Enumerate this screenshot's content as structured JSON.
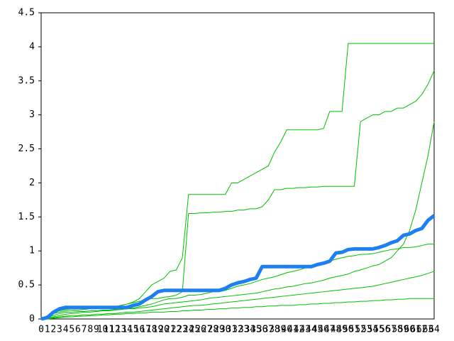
{
  "chart_data": {
    "type": "line",
    "categories": [
      0,
      1,
      2,
      3,
      4,
      5,
      6,
      7,
      8,
      9,
      10,
      11,
      12,
      13,
      14,
      15,
      16,
      17,
      18,
      19,
      20,
      21,
      22,
      23,
      24,
      25,
      26,
      27,
      28,
      29,
      30,
      31,
      32,
      33,
      34,
      35,
      36,
      37,
      38,
      39,
      40,
      41,
      42,
      43,
      44,
      45,
      46,
      47,
      48,
      49,
      50,
      51,
      52,
      53,
      54,
      55,
      56,
      57,
      58,
      59,
      60,
      61,
      62,
      63,
      64
    ],
    "ylim": [
      0,
      4.5
    ],
    "yticks": [
      0,
      0.5,
      1,
      1.5,
      2,
      2.5,
      3,
      3.5,
      4,
      4.5
    ],
    "series": [
      {
        "color": "#00c000",
        "values": [
          0,
          0.05,
          0.1,
          0.12,
          0.14,
          0.15,
          0.15,
          0.16,
          0.16,
          0.17,
          0.17,
          0.18,
          0.18,
          0.2,
          0.22,
          0.25,
          0.3,
          0.4,
          0.5,
          0.55,
          0.6,
          0.7,
          0.72,
          0.9,
          1.83,
          1.83,
          1.83,
          1.83,
          1.83,
          1.83,
          1.83,
          2.0,
          2.0,
          2.05,
          2.1,
          2.15,
          2.2,
          2.25,
          2.45,
          2.6,
          2.78,
          2.78,
          2.78,
          2.78,
          2.78,
          2.78,
          2.8,
          3.05,
          3.05,
          3.05,
          4.05,
          4.05,
          4.05,
          4.05,
          4.05,
          4.05,
          4.05,
          4.05,
          4.05,
          4.05,
          4.05,
          4.05,
          4.05,
          4.05,
          4.05
        ]
      },
      {
        "color": "#00c000",
        "values": [
          0,
          0.03,
          0.08,
          0.1,
          0.12,
          0.13,
          0.13,
          0.14,
          0.15,
          0.15,
          0.16,
          0.17,
          0.18,
          0.2,
          0.22,
          0.24,
          0.26,
          0.28,
          0.3,
          0.3,
          0.32,
          0.33,
          0.35,
          0.4,
          1.55,
          1.55,
          1.56,
          1.56,
          1.57,
          1.57,
          1.58,
          1.58,
          1.6,
          1.6,
          1.62,
          1.62,
          1.65,
          1.75,
          1.9,
          1.9,
          1.92,
          1.92,
          1.93,
          1.93,
          1.94,
          1.94,
          1.95,
          1.95,
          1.95,
          1.95,
          1.95,
          1.95,
          2.9,
          2.95,
          3.0,
          3.0,
          3.05,
          3.05,
          3.1,
          3.1,
          3.15,
          3.2,
          3.3,
          3.45,
          3.65
        ]
      },
      {
        "color": "#00c000",
        "values": [
          0,
          0.02,
          0.05,
          0.08,
          0.1,
          0.1,
          0.11,
          0.11,
          0.12,
          0.12,
          0.13,
          0.13,
          0.14,
          0.14,
          0.15,
          0.15,
          0.16,
          0.17,
          0.18,
          0.2,
          0.22,
          0.23,
          0.24,
          0.25,
          0.26,
          0.27,
          0.28,
          0.3,
          0.31,
          0.32,
          0.33,
          0.34,
          0.35,
          0.36,
          0.37,
          0.38,
          0.4,
          0.42,
          0.44,
          0.45,
          0.47,
          0.48,
          0.5,
          0.52,
          0.53,
          0.55,
          0.57,
          0.6,
          0.62,
          0.64,
          0.66,
          0.7,
          0.72,
          0.75,
          0.78,
          0.8,
          0.85,
          0.9,
          1.0,
          1.1,
          1.3,
          1.6,
          2.0,
          2.4,
          2.9
        ]
      },
      {
        "color": "#00c000",
        "values": [
          0,
          0.01,
          0.03,
          0.05,
          0.07,
          0.08,
          0.09,
          0.1,
          0.1,
          0.11,
          0.12,
          0.12,
          0.13,
          0.14,
          0.15,
          0.16,
          0.18,
          0.2,
          0.22,
          0.25,
          0.28,
          0.3,
          0.3,
          0.32,
          0.35,
          0.35,
          0.36,
          0.38,
          0.4,
          0.4,
          0.42,
          0.45,
          0.48,
          0.5,
          0.52,
          0.55,
          0.58,
          0.6,
          0.62,
          0.65,
          0.68,
          0.7,
          0.72,
          0.75,
          0.78,
          0.8,
          0.82,
          0.85,
          0.88,
          0.9,
          0.92,
          0.93,
          0.95,
          0.95,
          0.96,
          0.98,
          1.0,
          1.02,
          1.03,
          1.05,
          1.05,
          1.06,
          1.08,
          1.1,
          1.1
        ]
      },
      {
        "color": "#00c000",
        "values": [
          0,
          0.01,
          0.02,
          0.03,
          0.04,
          0.05,
          0.05,
          0.06,
          0.06,
          0.07,
          0.07,
          0.08,
          0.08,
          0.09,
          0.1,
          0.1,
          0.11,
          0.12,
          0.13,
          0.14,
          0.15,
          0.16,
          0.17,
          0.18,
          0.19,
          0.2,
          0.2,
          0.21,
          0.22,
          0.23,
          0.24,
          0.25,
          0.26,
          0.27,
          0.28,
          0.29,
          0.3,
          0.31,
          0.32,
          0.33,
          0.34,
          0.35,
          0.36,
          0.37,
          0.38,
          0.39,
          0.4,
          0.41,
          0.42,
          0.43,
          0.44,
          0.45,
          0.46,
          0.47,
          0.48,
          0.5,
          0.52,
          0.54,
          0.56,
          0.58,
          0.6,
          0.62,
          0.64,
          0.67,
          0.7
        ]
      },
      {
        "color": "#00c000",
        "values": [
          0,
          0,
          0.01,
          0.02,
          0.03,
          0.03,
          0.04,
          0.04,
          0.05,
          0.05,
          0.06,
          0.06,
          0.07,
          0.07,
          0.08,
          0.08,
          0.09,
          0.09,
          0.1,
          0.1,
          0.1,
          0.11,
          0.11,
          0.12,
          0.12,
          0.13,
          0.13,
          0.14,
          0.14,
          0.15,
          0.15,
          0.16,
          0.16,
          0.17,
          0.17,
          0.18,
          0.18,
          0.19,
          0.19,
          0.2,
          0.2,
          0.2,
          0.21,
          0.21,
          0.22,
          0.22,
          0.23,
          0.23,
          0.24,
          0.24,
          0.25,
          0.25,
          0.26,
          0.26,
          0.27,
          0.27,
          0.28,
          0.28,
          0.29,
          0.29,
          0.3,
          0.3,
          0.3,
          0.3,
          0.3
        ]
      },
      {
        "color": "#1e7ff0",
        "values": [
          0,
          0.02,
          0.1,
          0.15,
          0.17,
          0.17,
          0.17,
          0.17,
          0.17,
          0.17,
          0.17,
          0.17,
          0.17,
          0.17,
          0.17,
          0.2,
          0.22,
          0.28,
          0.33,
          0.4,
          0.42,
          0.42,
          0.42,
          0.42,
          0.42,
          0.42,
          0.42,
          0.42,
          0.42,
          0.42,
          0.45,
          0.5,
          0.53,
          0.55,
          0.58,
          0.6,
          0.77,
          0.77,
          0.77,
          0.77,
          0.77,
          0.77,
          0.77,
          0.77,
          0.77,
          0.8,
          0.82,
          0.85,
          0.97,
          0.98,
          1.02,
          1.03,
          1.03,
          1.03,
          1.03,
          1.05,
          1.08,
          1.12,
          1.15,
          1.23,
          1.25,
          1.3,
          1.33,
          1.45,
          1.52
        ]
      }
    ]
  }
}
